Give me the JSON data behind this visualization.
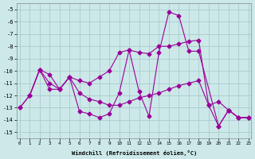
{
  "line1_x": [
    0,
    1,
    2,
    3,
    4,
    5,
    6,
    7,
    8,
    9,
    10,
    11,
    12,
    13,
    14,
    15,
    16,
    17,
    18,
    19,
    20,
    21,
    22,
    23
  ],
  "line1_y": [
    -13.0,
    -12.0,
    -9.9,
    -10.3,
    -11.5,
    -10.5,
    -10.8,
    -11.0,
    -10.5,
    -10.0,
    -8.5,
    -8.3,
    -8.5,
    -8.6,
    -8.0,
    -8.0,
    -7.8,
    -7.6,
    -7.5,
    -12.8,
    -12.5,
    -13.2,
    -13.8,
    -13.8
  ],
  "line2_x": [
    0,
    1,
    2,
    3,
    4,
    5,
    6,
    7,
    8,
    9,
    10,
    11,
    12,
    13,
    14,
    15,
    16,
    17,
    18,
    19,
    20,
    21,
    22,
    23
  ],
  "line2_y": [
    -13.0,
    -12.0,
    -9.9,
    -11.0,
    -11.5,
    -10.5,
    -11.8,
    -12.3,
    -12.5,
    -12.8,
    -12.8,
    -12.5,
    -12.2,
    -12.0,
    -11.8,
    -11.5,
    -11.2,
    -11.0,
    -10.8,
    -12.8,
    -14.5,
    -13.2,
    -13.8,
    -13.8
  ],
  "line3_x": [
    1,
    2,
    3,
    4,
    5,
    6,
    7,
    8,
    9,
    10,
    11,
    12,
    13,
    14,
    15,
    16,
    17,
    18,
    20,
    21,
    22,
    23
  ],
  "line3_y": [
    -12.0,
    -9.9,
    -11.5,
    -11.5,
    -10.5,
    -13.3,
    -13.5,
    -13.8,
    -13.5,
    -11.8,
    -8.3,
    -11.7,
    -13.7,
    -8.5,
    -5.2,
    -5.5,
    -8.4,
    -8.4,
    -14.5,
    -13.2,
    -13.8,
    -13.8
  ],
  "background_color": "#cce8e8",
  "grid_color": "#aacccc",
  "line_color": "#990099",
  "marker": "D",
  "markersize": 2.5,
  "linewidth": 0.8,
  "xlim": [
    -0.3,
    23.3
  ],
  "ylim": [
    -15.5,
    -4.5
  ],
  "yticks": [
    -5,
    -6,
    -7,
    -8,
    -9,
    -10,
    -11,
    -12,
    -13,
    -14,
    -15
  ],
  "xticks": [
    0,
    1,
    2,
    3,
    4,
    5,
    6,
    7,
    8,
    9,
    10,
    11,
    12,
    13,
    14,
    15,
    16,
    17,
    18,
    19,
    20,
    21,
    22,
    23
  ],
  "xlabel": "Windchill (Refroidissement éolien,°C)"
}
